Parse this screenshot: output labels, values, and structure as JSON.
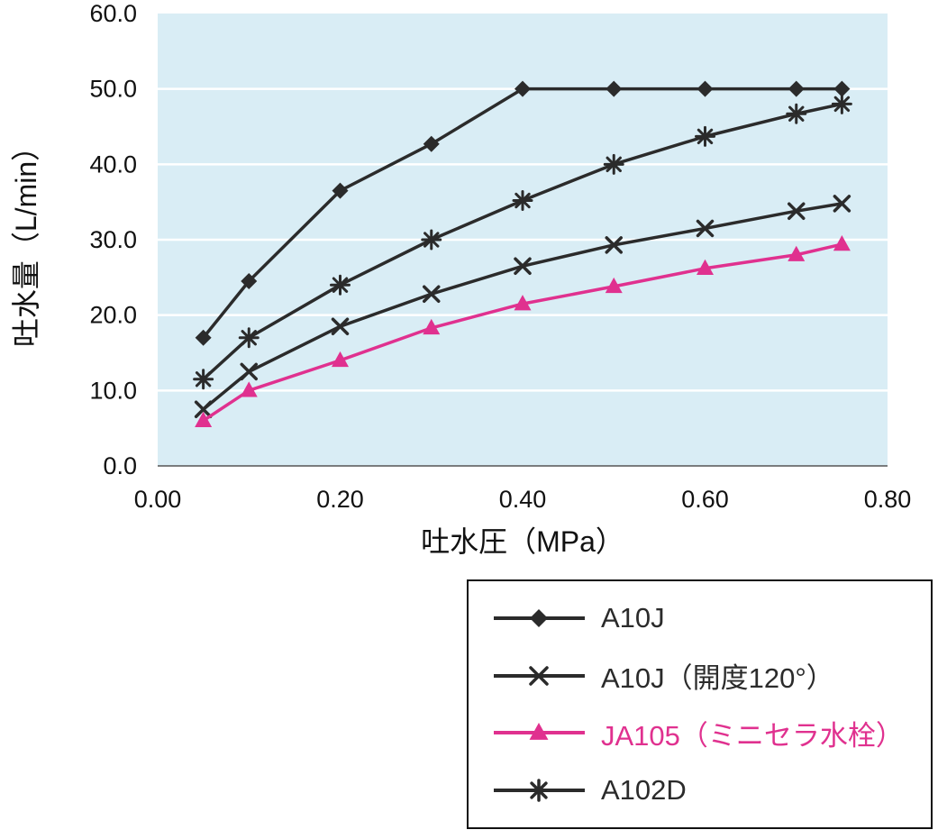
{
  "chart_data": {
    "type": "line",
    "x": [
      0.05,
      0.1,
      0.2,
      0.3,
      0.4,
      0.5,
      0.6,
      0.7,
      0.75
    ],
    "series": [
      {
        "name": "A10J",
        "marker": "diamond",
        "color": "#2b2b2b",
        "values": [
          17.0,
          24.5,
          36.5,
          42.7,
          50.0,
          50.0,
          50.0,
          50.0,
          50.0
        ]
      },
      {
        "name": "A10J（開度120°）",
        "marker": "x",
        "color": "#2b2b2b",
        "values": [
          7.5,
          12.5,
          18.5,
          22.8,
          26.5,
          29.3,
          31.5,
          33.8,
          34.8
        ]
      },
      {
        "name": "JA105（ミニセラ水栓）",
        "marker": "triangle",
        "color": "#e0318f",
        "values": [
          6.0,
          10.0,
          14.0,
          18.3,
          21.5,
          23.8,
          26.2,
          28.0,
          29.4
        ]
      },
      {
        "name": "A102D",
        "marker": "asterisk",
        "color": "#2b2b2b",
        "values": [
          11.5,
          17.0,
          24.0,
          30.0,
          35.2,
          40.0,
          43.7,
          46.7,
          48.0
        ]
      }
    ],
    "xlabel": "吐水圧（MPa）",
    "ylabel": "吐水量（L/min）",
    "xlim": [
      0.0,
      0.8
    ],
    "ylim": [
      0.0,
      60.0
    ],
    "x_ticks": [
      0.0,
      0.2,
      0.4,
      0.6,
      0.8
    ],
    "x_tick_labels": [
      "0.00",
      "0.20",
      "0.40",
      "0.60",
      "0.80"
    ],
    "y_ticks": [
      0.0,
      10.0,
      20.0,
      30.0,
      40.0,
      50.0,
      60.0
    ],
    "y_tick_labels": [
      "0.0",
      "10.0",
      "20.0",
      "30.0",
      "40.0",
      "50.0",
      "60.0"
    ],
    "grid": true,
    "plot_bg": "#d9edf5",
    "grid_color": "#ffffff",
    "axis_line_color": "#555555",
    "text_color": "#111111",
    "legend_position": "bottom-right",
    "legend_border_color": "#111111"
  }
}
